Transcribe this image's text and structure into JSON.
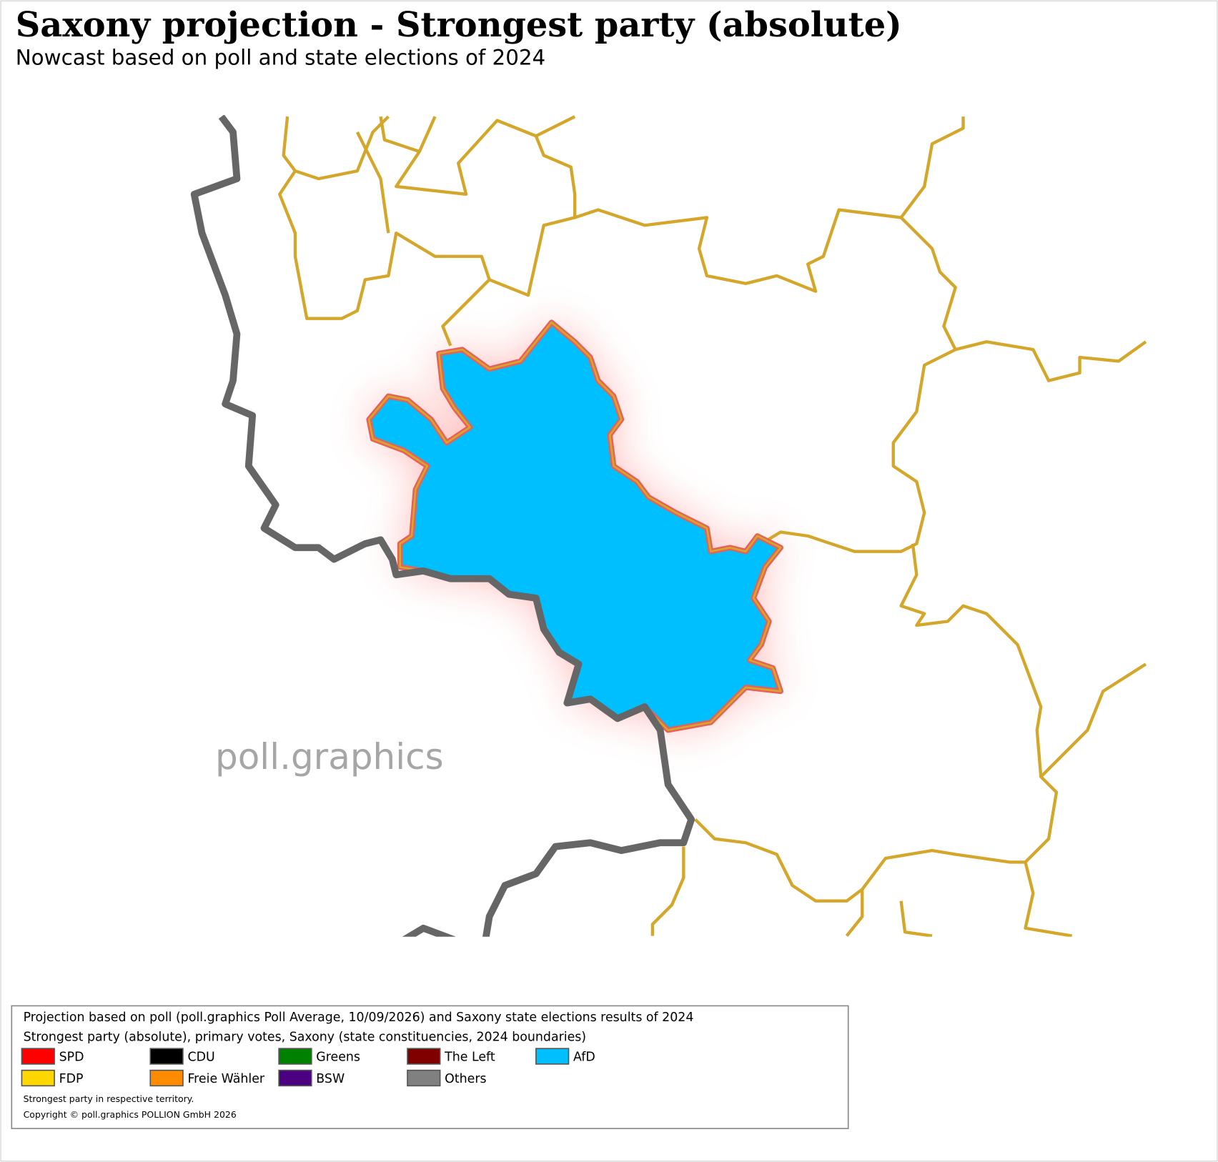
{
  "header": {
    "title": "Saxony projection - Strongest party (absolute)",
    "subtitle": "Nowcast based on poll and state elections of 2024"
  },
  "watermark": "poll.graphics",
  "legend": {
    "lines": [
      "Projection based on poll (poll.graphics Poll Average, 10/09/2026) and Saxony state elections results of 2024",
      "Strongest party (absolute), primary votes, Saxony (state constituencies, 2024 boundaries)"
    ],
    "items": [
      {
        "name": "SPD",
        "color": "#ff0000"
      },
      {
        "name": "CDU",
        "color": "#000000"
      },
      {
        "name": "Greens",
        "color": "#008000"
      },
      {
        "name": "The Left",
        "color": "#800000"
      },
      {
        "name": "AfD",
        "color": "#00bfff"
      },
      {
        "name": "FDP",
        "color": "#ffd700"
      },
      {
        "name": "Freie Wähler",
        "color": "#ff8c00"
      },
      {
        "name": "BSW",
        "color": "#4b0082"
      },
      {
        "name": "Others",
        "color": "#808080"
      }
    ],
    "notes": [
      "Strongest party in respective territory.",
      "Copyright © poll.graphics POLLION GmbH 2026"
    ]
  }
}
